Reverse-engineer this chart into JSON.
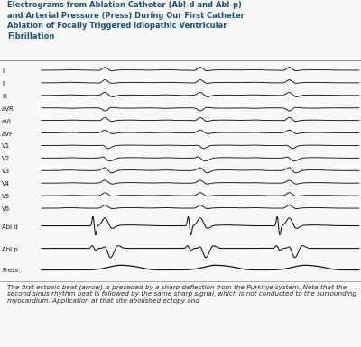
{
  "title_text": "Electrograms from Ablation Catheter (Abl-d and Abl-p)\nand Arterial Pressure (Press) During Our First Catheter\nAblation of Focally Triggered Idiopathic Ventricular\nFibrillation",
  "title_color": "#1a5276",
  "leads": [
    "I",
    "II",
    "III",
    "aVR",
    "aVL",
    "aVF",
    "V1",
    "V2",
    "V3",
    "V4",
    "V5",
    "V6",
    "Abl d",
    "Abl p",
    "Press"
  ],
  "background_color": "#f8f8f8",
  "ecg_color": "#111111",
  "caption": "The first ectopic beat (arrow) is preceded by a sharp deflection from the Purkinje system. Note that the second sinus rhythm beat is followed by the same sharp signal, which is not conducted to the surrounding myocardium. Application at that site abolished ectopy and",
  "caption_color": "#222222",
  "caption_fontsize": 5.2,
  "title_fontsize": 6.0,
  "label_fontsize": 5.0
}
